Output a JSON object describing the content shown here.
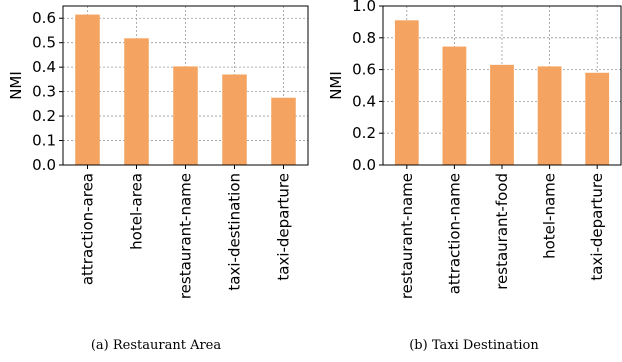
{
  "figure_color": "#f4a460",
  "chart_data": [
    {
      "type": "bar",
      "title": "",
      "xlabel": "",
      "ylabel": "NMI",
      "ylim": [
        0,
        0.65
      ],
      "yticks": [
        "0.0",
        "0.1",
        "0.2",
        "0.3",
        "0.4",
        "0.5",
        "0.6"
      ],
      "categories": [
        "attraction-area",
        "hotel-area",
        "restaurant-name",
        "taxi-destination",
        "taxi-departure"
      ],
      "values": [
        0.615,
        0.518,
        0.403,
        0.37,
        0.275
      ],
      "grid": true,
      "caption": "(a)  Restaurant Area"
    },
    {
      "type": "bar",
      "title": "",
      "xlabel": "",
      "ylabel": "NMI",
      "ylim": [
        0,
        1.0
      ],
      "yticks": [
        "0.0",
        "0.2",
        "0.4",
        "0.6",
        "0.8",
        "1.0"
      ],
      "categories": [
        "restaurant-name",
        "attraction-name",
        "restaurant-food",
        "hotel-name",
        "taxi-departure"
      ],
      "values": [
        0.91,
        0.745,
        0.63,
        0.62,
        0.58
      ],
      "grid": true,
      "caption": "(b)  Taxi Destination"
    }
  ]
}
